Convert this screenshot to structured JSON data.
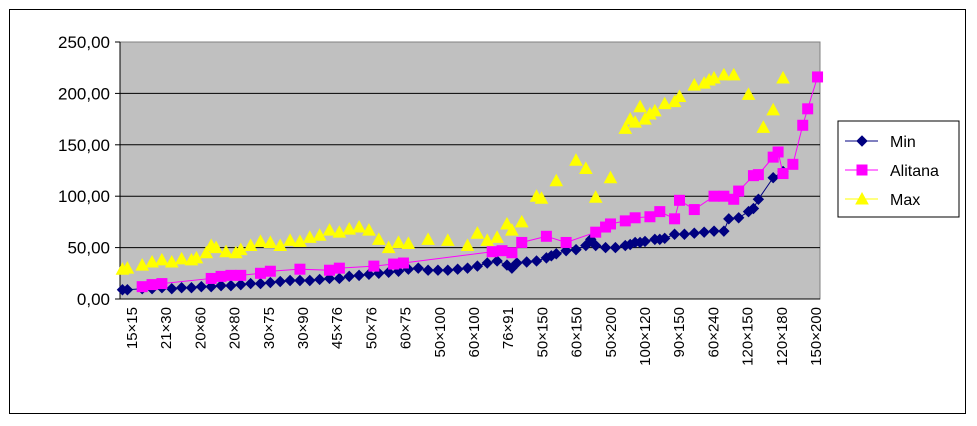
{
  "chart_data": {
    "type": "scatter",
    "title": "",
    "xlabel": "",
    "ylabel": "",
    "ylim": [
      0,
      250
    ],
    "yticks": [
      "0,00",
      "50,00",
      "100,00",
      "150,00",
      "200,00",
      "250,00"
    ],
    "x_tick_labels": [
      "15×15",
      "21×30",
      "20×60",
      "20×80",
      "30×75",
      "30×90",
      "45×76",
      "50×76",
      "60×75",
      "50×100",
      "60×100",
      "76×91",
      "50×150",
      "60×150",
      "50×200",
      "100×120",
      "90×150",
      "60×240",
      "120×150",
      "120×180",
      "150×200"
    ],
    "grid": "horizontal",
    "plot_background": "#c0c0c0",
    "legend_position": "right",
    "series": [
      {
        "name": "Min",
        "color": "#000080",
        "marker": "diamond",
        "line": true,
        "points": [
          [
            1,
            9
          ],
          [
            2,
            9
          ],
          [
            5,
            10
          ],
          [
            7,
            10
          ],
          [
            9,
            11
          ],
          [
            11,
            10
          ],
          [
            13,
            11
          ],
          [
            15,
            11
          ],
          [
            17,
            12
          ],
          [
            19,
            12
          ],
          [
            21,
            13
          ],
          [
            23,
            13
          ],
          [
            25,
            14
          ],
          [
            27,
            15
          ],
          [
            29,
            15
          ],
          [
            31,
            16
          ],
          [
            33,
            17
          ],
          [
            35,
            18
          ],
          [
            37,
            18
          ],
          [
            39,
            18
          ],
          [
            41,
            19
          ],
          [
            43,
            20
          ],
          [
            45,
            20
          ],
          [
            47,
            22
          ],
          [
            49,
            23
          ],
          [
            51,
            24
          ],
          [
            53,
            25
          ],
          [
            55,
            26
          ],
          [
            57,
            27
          ],
          [
            59,
            29
          ],
          [
            61,
            30
          ],
          [
            63,
            28
          ],
          [
            65,
            28
          ],
          [
            67,
            28
          ],
          [
            69,
            29
          ],
          [
            71,
            30
          ],
          [
            73,
            32
          ],
          [
            75,
            35
          ],
          [
            77,
            37
          ],
          [
            79,
            33
          ],
          [
            80,
            30
          ],
          [
            81,
            35
          ],
          [
            83,
            36
          ],
          [
            85,
            37
          ],
          [
            87,
            40
          ],
          [
            88,
            42
          ],
          [
            89,
            44
          ],
          [
            91,
            47
          ],
          [
            93,
            48
          ],
          [
            95,
            52
          ],
          [
            96,
            58
          ],
          [
            97,
            52
          ],
          [
            99,
            50
          ],
          [
            101,
            50
          ],
          [
            103,
            52
          ],
          [
            104,
            53
          ],
          [
            105,
            55
          ],
          [
            106,
            55
          ],
          [
            107,
            56
          ],
          [
            109,
            58
          ],
          [
            110,
            58
          ],
          [
            111,
            59
          ],
          [
            113,
            63
          ],
          [
            115,
            63
          ],
          [
            117,
            64
          ],
          [
            119,
            65
          ],
          [
            121,
            66
          ],
          [
            123,
            66
          ],
          [
            124,
            78
          ],
          [
            126,
            79
          ],
          [
            128,
            85
          ],
          [
            129,
            88
          ],
          [
            130,
            97
          ],
          [
            133,
            118
          ],
          [
            135,
            124
          ]
        ]
      },
      {
        "name": "Alitana",
        "color": "#ff00ff",
        "marker": "square",
        "line": true,
        "points": [
          [
            5,
            12
          ],
          [
            7,
            14
          ],
          [
            9,
            15
          ],
          [
            19,
            20
          ],
          [
            21,
            22
          ],
          [
            23,
            23
          ],
          [
            25,
            23
          ],
          [
            29,
            25
          ],
          [
            31,
            27
          ],
          [
            37,
            29
          ],
          [
            43,
            28
          ],
          [
            45,
            30
          ],
          [
            52,
            32
          ],
          [
            56,
            34
          ],
          [
            58,
            35
          ],
          [
            76,
            46
          ],
          [
            78,
            47
          ],
          [
            80,
            45
          ],
          [
            82,
            55
          ],
          [
            87,
            61
          ],
          [
            91,
            55
          ],
          [
            97,
            65
          ],
          [
            99,
            70
          ],
          [
            100,
            73
          ],
          [
            103,
            76
          ],
          [
            105,
            79
          ],
          [
            108,
            80
          ],
          [
            110,
            85
          ],
          [
            113,
            78
          ],
          [
            114,
            96
          ],
          [
            117,
            87
          ],
          [
            121,
            100
          ],
          [
            123,
            100
          ],
          [
            125,
            97
          ],
          [
            126,
            105
          ],
          [
            129,
            120
          ],
          [
            130,
            121
          ],
          [
            133,
            138
          ],
          [
            134,
            143
          ],
          [
            135,
            122
          ],
          [
            137,
            131
          ],
          [
            139,
            169
          ],
          [
            140,
            185
          ],
          [
            142,
            216
          ]
        ]
      },
      {
        "name": "Max",
        "color": "#ffff00",
        "marker": "triangle",
        "line": false,
        "points": [
          [
            1,
            29
          ],
          [
            2,
            30
          ],
          [
            5,
            33
          ],
          [
            7,
            36
          ],
          [
            9,
            38
          ],
          [
            11,
            36
          ],
          [
            13,
            39
          ],
          [
            15,
            38
          ],
          [
            16,
            40
          ],
          [
            18,
            45
          ],
          [
            19,
            52
          ],
          [
            20,
            50
          ],
          [
            22,
            46
          ],
          [
            24,
            45
          ],
          [
            25,
            48
          ],
          [
            27,
            52
          ],
          [
            29,
            56
          ],
          [
            31,
            55
          ],
          [
            33,
            52
          ],
          [
            35,
            57
          ],
          [
            37,
            56
          ],
          [
            39,
            60
          ],
          [
            41,
            62
          ],
          [
            43,
            67
          ],
          [
            45,
            65
          ],
          [
            47,
            68
          ],
          [
            49,
            70
          ],
          [
            51,
            67
          ],
          [
            53,
            58
          ],
          [
            55,
            50
          ],
          [
            57,
            55
          ],
          [
            59,
            54
          ],
          [
            63,
            58
          ],
          [
            67,
            57
          ],
          [
            71,
            52
          ],
          [
            73,
            64
          ],
          [
            75,
            57
          ],
          [
            77,
            60
          ],
          [
            79,
            73
          ],
          [
            80,
            67
          ],
          [
            82,
            75
          ],
          [
            85,
            100
          ],
          [
            86,
            98
          ],
          [
            89,
            115
          ],
          [
            93,
            135
          ],
          [
            95,
            127
          ],
          [
            97,
            99
          ],
          [
            100,
            118
          ],
          [
            103,
            166
          ],
          [
            104,
            175
          ],
          [
            105,
            172
          ],
          [
            106,
            187
          ],
          [
            107,
            175
          ],
          [
            108,
            180
          ],
          [
            109,
            183
          ],
          [
            111,
            190
          ],
          [
            113,
            192
          ],
          [
            114,
            197
          ],
          [
            117,
            208
          ],
          [
            119,
            210
          ],
          [
            120,
            213
          ],
          [
            121,
            215
          ],
          [
            123,
            218
          ],
          [
            125,
            218
          ],
          [
            128,
            199
          ],
          [
            131,
            167
          ],
          [
            133,
            184
          ],
          [
            135,
            215
          ]
        ]
      }
    ]
  }
}
